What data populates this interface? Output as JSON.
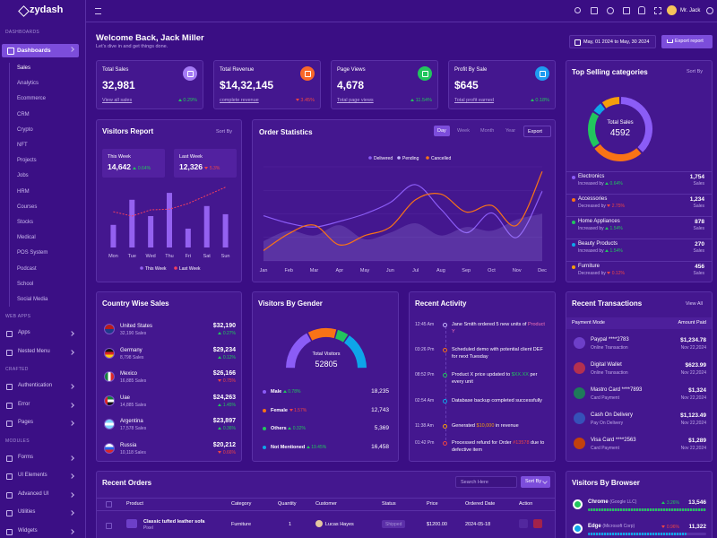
{
  "header": {
    "brand": "zydash",
    "user": "Mr. Jack"
  },
  "sidebar": {
    "sections": [
      {
        "title": "DASHBOARDS",
        "active": "Dashboards",
        "items": [
          "Sales",
          "Analytics",
          "Ecommerce",
          "CRM",
          "Crypto",
          "NFT",
          "Projects",
          "Jobs",
          "HRM",
          "Courses",
          "Stocks",
          "Medical",
          "POS System",
          "Podcast",
          "School",
          "Social Media"
        ]
      },
      {
        "title": "WEB APPS",
        "items": [
          "Apps",
          "Nested Menu"
        ]
      },
      {
        "title": "CRAFTED",
        "items": [
          "Authentication",
          "Error",
          "Pages"
        ]
      },
      {
        "title": "MODULES",
        "items": [
          "Forms",
          "UI Elements",
          "Advanced UI",
          "Utilities",
          "Widgets"
        ]
      }
    ]
  },
  "welcome": {
    "title": "Welcome Back, Jack Miller",
    "subtitle": "Let's dive in and get things done.",
    "date_range": "May, 01 2024 to May, 30 2024",
    "export": "Export report"
  },
  "stats": [
    {
      "title": "Total Sales",
      "value": "32,981",
      "link": "View all sales",
      "change": "0.29%",
      "trend": "up",
      "icon_color": "#a57cf5"
    },
    {
      "title": "Total Revenue",
      "value": "$14,32,145",
      "link": "complete revenue",
      "change": "3.45%",
      "trend": "down",
      "icon_color": "#f8672a"
    },
    {
      "title": "Page Views",
      "value": "4,678",
      "link": "Total page views",
      "change": "11.54%",
      "trend": "up",
      "icon_color": "#22c55e"
    },
    {
      "title": "Profit By Sale",
      "value": "$645",
      "link": "Total profit earned",
      "change": "0.18%",
      "trend": "up",
      "icon_color": "#1e9bf0"
    }
  ],
  "top_selling": {
    "title": "Top Selling categories",
    "sort": "Sort By",
    "center_label": "Total Sales",
    "center_value": "4592",
    "unit": "Sales",
    "rows": [
      {
        "name": "Electronics",
        "note": "Increased by",
        "change": "0.64%",
        "trend": "up",
        "sales": 1754,
        "sales_label": "1,754",
        "color": "#8b5cf6"
      },
      {
        "name": "Accessories",
        "note": "Decreased by",
        "change": "2.75%",
        "trend": "down",
        "sales": 1234,
        "sales_label": "1,234",
        "color": "#f97316"
      },
      {
        "name": "Home Appliances",
        "note": "Increased by",
        "change": "1.54%",
        "trend": "up",
        "sales": 878,
        "sales_label": "878",
        "color": "#22c55e"
      },
      {
        "name": "Beauty Products",
        "note": "Increased by",
        "change": "1.54%",
        "trend": "up",
        "sales": 270,
        "sales_label": "270",
        "color": "#0ea5e9"
      },
      {
        "name": "Furniture",
        "note": "Decreased by",
        "change": "0.12%",
        "trend": "down",
        "sales": 456,
        "sales_label": "456",
        "color": "#f59e0b"
      }
    ]
  },
  "visitors_report": {
    "title": "Visitors Report",
    "sort": "Sort By",
    "this_week": {
      "label": "This Week",
      "value": "14,642",
      "change": "0.64%",
      "trend": "up"
    },
    "last_week": {
      "label": "Last Week",
      "value": "12,326",
      "change": "5.3%",
      "trend": "down"
    },
    "chart": {
      "type": "bar",
      "categories": [
        "Mon",
        "Tue",
        "Wed",
        "Thu",
        "Fri",
        "Sat",
        "Sun"
      ],
      "ylim": [
        0,
        100
      ],
      "series": [
        {
          "name": "This Week",
          "color": "#9461f0",
          "values": [
            36,
            76,
            50,
            87,
            30,
            66,
            53
          ]
        },
        {
          "name": "Last Week",
          "color": "#f43f5e",
          "values": [
            57,
            50,
            60,
            61,
            70,
            83,
            96
          ]
        }
      ]
    }
  },
  "order_statistics": {
    "title": "Order Statistics",
    "tabs": [
      "Day",
      "Week",
      "Month",
      "Year"
    ],
    "active_tab": 0,
    "export": "Export",
    "chart": {
      "type": "line",
      "categories": [
        "Jan",
        "Feb",
        "Mar",
        "Apr",
        "May",
        "Jun",
        "Jul",
        "Aug",
        "Sep",
        "Oct",
        "Nov",
        "Dec"
      ],
      "ylim": [
        0,
        100
      ],
      "series": [
        {
          "name": "Delivered",
          "color": "#8b5cf6",
          "style": "line",
          "values": [
            48,
            40,
            36,
            42,
            50,
            62,
            81,
            55,
            30,
            51,
            25,
            74
          ]
        },
        {
          "name": "Pending",
          "color": "#c4b5fd",
          "style": "area",
          "values": [
            21,
            32,
            27,
            38,
            23,
            30,
            40,
            27,
            36,
            32,
            44,
            50
          ]
        },
        {
          "name": "Cancelled",
          "color": "#f97316",
          "style": "line",
          "values": [
            11,
            29,
            38,
            17,
            27,
            36,
            65,
            71,
            52,
            59,
            38,
            95
          ]
        }
      ]
    }
  },
  "country_sales": {
    "title": "Country Wise Sales",
    "rows": [
      {
        "country": "United States",
        "sales": "32,190 Sales",
        "amount": "$32,190",
        "change": "0.27%",
        "trend": "up"
      },
      {
        "country": "Germany",
        "sales": "8,798 Sales",
        "amount": "$29,234",
        "change": "0.12%",
        "trend": "up"
      },
      {
        "country": "Mexico",
        "sales": "16,885 Sales",
        "amount": "$26,166",
        "change": "0.75%",
        "trend": "down"
      },
      {
        "country": "Uae",
        "sales": "14,885 Sales",
        "amount": "$24,263",
        "change": "1.45%",
        "trend": "up"
      },
      {
        "country": "Argentina",
        "sales": "17,578 Sales",
        "amount": "$23,897",
        "change": "0.36%",
        "trend": "up"
      },
      {
        "country": "Russia",
        "sales": "10,118 Sales",
        "amount": "$20,212",
        "change": "0.66%",
        "trend": "down"
      }
    ]
  },
  "gender": {
    "title": "Visitors By Gender",
    "center_label": "Total Visitors",
    "center_value": "52805",
    "rows": [
      {
        "name": "Male",
        "change": "0.78%",
        "trend": "up",
        "count": 18235,
        "count_label": "18,235",
        "color": "#8b5cf6"
      },
      {
        "name": "Female",
        "change": "1.57%",
        "trend": "down",
        "count": 12743,
        "count_label": "12,743",
        "color": "#f97316"
      },
      {
        "name": "Others",
        "change": "0.32%",
        "trend": "up",
        "count": 5369,
        "count_label": "5,369",
        "color": "#22c55e"
      },
      {
        "name": "Not Mentioned",
        "change": "19.45%",
        "trend": "up",
        "count": 16458,
        "count_label": "16,458",
        "color": "#0ea5e9"
      }
    ]
  },
  "activity": {
    "title": "Recent Activity",
    "items": [
      {
        "time": "12:45 Am",
        "dot": "#c4b5fd",
        "parts": [
          {
            "text": "Jane Smith ordered 5 new units of "
          },
          {
            "text": "Product Y",
            "color": "#f472b6"
          }
        ]
      },
      {
        "time": "03:26 Pm",
        "dot": "#f97316",
        "parts": [
          {
            "text": "Scheduled demo with potential client DEF for next Tuesday"
          }
        ]
      },
      {
        "time": "08:52 Pm",
        "dot": "#22c55e",
        "parts": [
          {
            "text": "Product X price updated to "
          },
          {
            "text": "$XX.XX",
            "color": "#22c55e"
          },
          {
            "text": " per every unit"
          }
        ]
      },
      {
        "time": "02:54 Am",
        "dot": "#0ea5e9",
        "parts": [
          {
            "text": "Database backup completed successfully"
          }
        ]
      },
      {
        "time": "11:38 Am",
        "dot": "#f59e0b",
        "parts": [
          {
            "text": "Generated "
          },
          {
            "text": "$10,000",
            "color": "#f59e0b"
          },
          {
            "text": " in revenue"
          }
        ]
      },
      {
        "time": "01:42 Pm",
        "dot": "#ef4444",
        "parts": [
          {
            "text": "Processed refund for Order "
          },
          {
            "text": "#13578",
            "color": "#ef4444"
          },
          {
            "text": " due to defective item"
          }
        ]
      }
    ]
  },
  "transactions": {
    "title": "Recent Transactions",
    "view_all": "View All",
    "columns": [
      "Payment Mode",
      "Amount Paid"
    ],
    "rows": [
      {
        "name": "Paypal ****2783",
        "type": "Online Transaction",
        "amount": "$1,234.78",
        "date": "Nov 22,2024",
        "icon_color": "#6d3fc8"
      },
      {
        "name": "Digital Wallet",
        "type": "Online Transaction",
        "amount": "$623.99",
        "date": "Nov 22,2024",
        "icon_color": "#b4304f"
      },
      {
        "name": "Mastro Card ****7893",
        "type": "Card Payment",
        "amount": "$1,324",
        "date": "Nov 22,2024",
        "icon_color": "#1f7a5a"
      },
      {
        "name": "Cash On Delivery",
        "type": "Pay On Delivery",
        "amount": "$1,123.49",
        "date": "Nov 22,2024",
        "icon_color": "#3651b8"
      },
      {
        "name": "Visa Card ****2563",
        "type": "Card Payment",
        "amount": "$1,289",
        "date": "Nov 22,2024",
        "icon_color": "#c2410c"
      }
    ]
  },
  "orders": {
    "title": "Recent Orders",
    "search": "Search Here",
    "sort": "Sort By",
    "columns": [
      "Product",
      "Category",
      "Quantity",
      "Customer",
      "Status",
      "Price",
      "Ordered Date",
      "Action"
    ],
    "rows": [
      {
        "product": "Classic tufted leather sofa",
        "brand": "Pixel",
        "category": "Furniture",
        "quantity": "1",
        "customer": "Lucas Hayes",
        "status": "Shipped",
        "price": "$1200.00",
        "date": "2024-05-18"
      }
    ]
  },
  "browsers": {
    "title": "Visitors By Browser",
    "rows": [
      {
        "name": "Chrome",
        "maker": "(Google LLC)",
        "change": "3.26%",
        "trend": "up",
        "count": 13546,
        "count_label": "13,546",
        "color": "#22c55e"
      },
      {
        "name": "Edge",
        "maker": "(Microsoft Corp)",
        "change": "0.96%",
        "trend": "down",
        "count": 11322,
        "count_label": "11,322",
        "color": "#0ea5e9"
      }
    ]
  }
}
